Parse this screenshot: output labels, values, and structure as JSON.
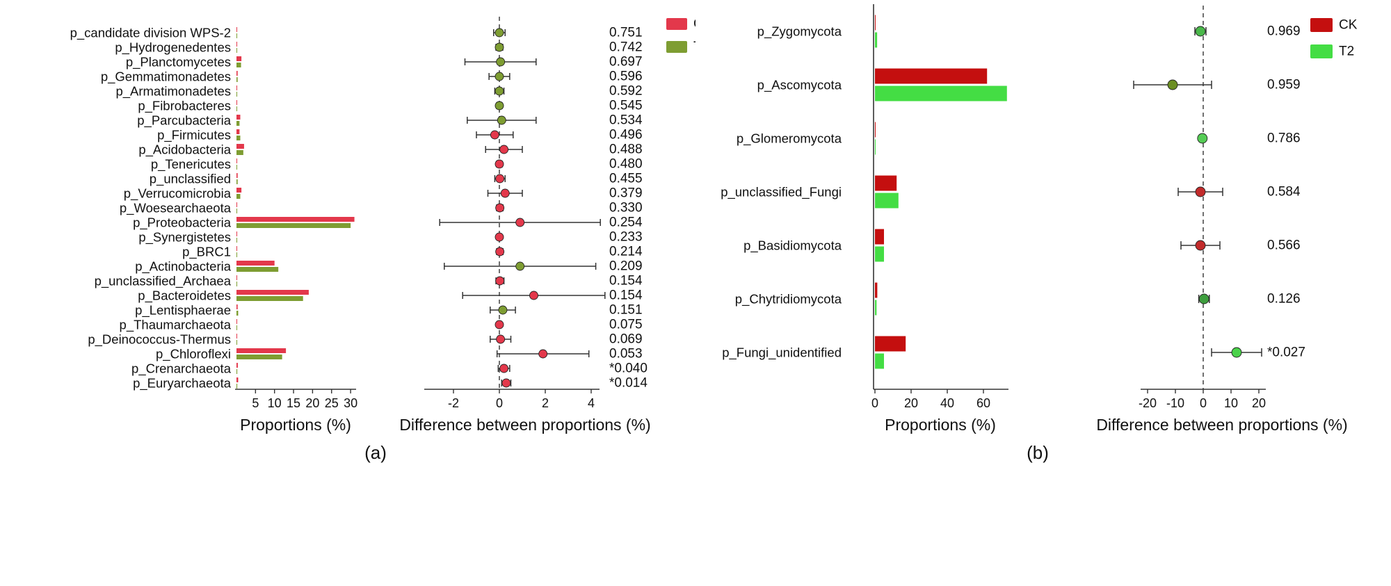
{
  "panels": [
    {
      "caption": "(a)",
      "prop_axis_label": "Proportions (%)",
      "diff_axis_label": "Difference between proportions (%)"
    },
    {
      "caption": "(b)",
      "prop_axis_label": "Proportions (%)",
      "diff_axis_label": "Difference between proportions (%)"
    }
  ],
  "chart_data": [
    {
      "type": "bar",
      "subtype": "extended-error-bar",
      "title": "",
      "caption": "(a)",
      "categories": [
        "p_candidate division WPS-2",
        "p_Hydrogenedentes",
        "p_Planctomycetes",
        "p_Gemmatimonadetes",
        "p_Armatimonadetes",
        "p_Fibrobacteres",
        "p_Parcubacteria",
        "p_Firmicutes",
        "p_Acidobacteria",
        "p_Tenericutes",
        "p_unclassified",
        "p_Verrucomicrobia",
        "p_Woesearchaeota",
        "p_Proteobacteria",
        "p_Synergistetes",
        "p_BRC1",
        "p_Actinobacteria",
        "p_unclassified_Archaea",
        "p_Bacteroidetes",
        "p_Lentisphaerae",
        "p_Thaumarchaeota",
        "p_Deinococcus-Thermus",
        "p_Chloroflexi",
        "p_Crenarchaeota",
        "p_Euryarchaeota"
      ],
      "series": [
        {
          "name": "CK",
          "color": "#e3384b",
          "values": [
            0.1,
            0.05,
            1.3,
            0.3,
            0.15,
            0.1,
            1.0,
            0.8,
            2.0,
            0.1,
            0.3,
            1.3,
            0.1,
            31,
            0.05,
            0.1,
            10,
            0.1,
            19,
            0.3,
            0.05,
            0.1,
            13,
            0.35,
            0.45
          ]
        },
        {
          "name": "T2",
          "color": "#7e9d32",
          "values": [
            0.1,
            0.05,
            1.2,
            0.3,
            0.15,
            0.1,
            0.8,
            1.0,
            1.8,
            0.1,
            0.3,
            1.0,
            0.1,
            30,
            0.05,
            0.1,
            11,
            0.1,
            17.5,
            0.45,
            0.05,
            0.1,
            12,
            0.2,
            0.2
          ]
        }
      ],
      "p_values": [
        "0.751",
        "0.742",
        "0.697",
        "0.596",
        "0.592",
        "0.545",
        "0.534",
        "0.496",
        "0.488",
        "0.480",
        "0.455",
        "0.379",
        "0.330",
        "0.254",
        "0.233",
        "0.214",
        "0.209",
        "0.154",
        "0.154",
        "0.151",
        "0.075",
        "0.069",
        "0.053",
        "*0.040",
        "*0.014"
      ],
      "differences": [
        {
          "value": 0.0,
          "lo": -0.25,
          "hi": 0.25,
          "color": "#7e9d32"
        },
        {
          "value": 0.0,
          "lo": -0.15,
          "hi": 0.15,
          "color": "#7e9d32"
        },
        {
          "value": 0.05,
          "lo": -1.5,
          "hi": 1.6,
          "color": "#7e9d32"
        },
        {
          "value": 0.0,
          "lo": -0.45,
          "hi": 0.45,
          "color": "#7e9d32"
        },
        {
          "value": 0.0,
          "lo": -0.2,
          "hi": 0.2,
          "color": "#7e9d32"
        },
        {
          "value": 0.0,
          "lo": -0.12,
          "hi": 0.12,
          "color": "#7e9d32"
        },
        {
          "value": 0.1,
          "lo": -1.4,
          "hi": 1.6,
          "color": "#7e9d32"
        },
        {
          "value": -0.2,
          "lo": -1.0,
          "hi": 0.6,
          "color": "#e3384b"
        },
        {
          "value": 0.2,
          "lo": -0.6,
          "hi": 1.0,
          "color": "#e3384b"
        },
        {
          "value": 0.0,
          "lo": -0.12,
          "hi": 0.12,
          "color": "#e3384b"
        },
        {
          "value": 0.02,
          "lo": -0.2,
          "hi": 0.25,
          "color": "#e3384b"
        },
        {
          "value": 0.25,
          "lo": -0.5,
          "hi": 1.0,
          "color": "#e3384b"
        },
        {
          "value": 0.02,
          "lo": -0.12,
          "hi": 0.16,
          "color": "#e3384b"
        },
        {
          "value": 0.9,
          "lo": -2.6,
          "hi": 4.4,
          "color": "#e3384b"
        },
        {
          "value": 0.0,
          "lo": -0.1,
          "hi": 0.1,
          "color": "#e3384b"
        },
        {
          "value": 0.02,
          "lo": -0.12,
          "hi": 0.16,
          "color": "#e3384b"
        },
        {
          "value": 0.9,
          "lo": -2.4,
          "hi": 4.2,
          "color": "#7e9d32"
        },
        {
          "value": 0.02,
          "lo": -0.15,
          "hi": 0.2,
          "color": "#e3384b"
        },
        {
          "value": 1.5,
          "lo": -1.6,
          "hi": 4.6,
          "color": "#e3384b"
        },
        {
          "value": 0.15,
          "lo": -0.4,
          "hi": 0.7,
          "color": "#7e9d32"
        },
        {
          "value": 0.0,
          "lo": -0.1,
          "hi": 0.1,
          "color": "#e3384b"
        },
        {
          "value": 0.05,
          "lo": -0.4,
          "hi": 0.5,
          "color": "#e3384b"
        },
        {
          "value": 1.9,
          "lo": -0.1,
          "hi": 3.9,
          "color": "#e3384b"
        },
        {
          "value": 0.2,
          "lo": -0.05,
          "hi": 0.45,
          "color": "#e3384b"
        },
        {
          "value": 0.3,
          "lo": 0.1,
          "hi": 0.5,
          "color": "#e3384b"
        }
      ],
      "prop_axis": {
        "label": "Proportions (%)",
        "ticks": [
          5,
          10,
          15,
          20,
          25,
          30
        ],
        "max": 32
      },
      "diff_axis": {
        "label": "Difference between proportions (%)",
        "ticks": [
          -2,
          0,
          2,
          4
        ],
        "min": -3.3,
        "max": 5
      }
    },
    {
      "type": "bar",
      "subtype": "extended-error-bar",
      "title": "",
      "caption": "(b)",
      "categories": [
        "p_Zygomycota",
        "p_Ascomycota",
        "p_Glomeromycota",
        "p_unclassified_Fungi",
        "p_Basidiomycota",
        "p_Chytridiomycota",
        "p_Fungi_unidentified"
      ],
      "series": [
        {
          "name": "CK",
          "color": "#c40f0f",
          "values": [
            0.2,
            62,
            0.15,
            12,
            5,
            1.3,
            17
          ]
        },
        {
          "name": "T2",
          "color": "#44dd44",
          "values": [
            1.2,
            73,
            0.4,
            13,
            5,
            0.9,
            5
          ]
        }
      ],
      "p_values": [
        "0.969",
        "0.959",
        "0.786",
        "0.584",
        "0.566",
        "0.126",
        "*0.027"
      ],
      "differences": [
        {
          "value": -1.0,
          "lo": -3.0,
          "hi": 1.0,
          "color": "#4ab84a"
        },
        {
          "value": -11.0,
          "lo": -25.0,
          "hi": 3.0,
          "color": "#6b8e23"
        },
        {
          "value": -0.3,
          "lo": -1.3,
          "hi": 0.7,
          "color": "#55cc55"
        },
        {
          "value": -1.0,
          "lo": -9.0,
          "hi": 7.0,
          "color": "#c22b2b"
        },
        {
          "value": -1.0,
          "lo": -8.0,
          "hi": 6.0,
          "color": "#c22b2b"
        },
        {
          "value": 0.3,
          "lo": -1.6,
          "hi": 2.2,
          "color": "#3e9e3e"
        },
        {
          "value": 12.0,
          "lo": 3.0,
          "hi": 21.0,
          "color": "#4ad24a"
        }
      ],
      "prop_axis": {
        "label": "Proportions (%)",
        "ticks": [
          0,
          20,
          40,
          60
        ],
        "max": 75
      },
      "diff_axis": {
        "label": "Difference between proportions (%)",
        "ticks": [
          -20,
          -10,
          0,
          10,
          20
        ],
        "min": -27,
        "max": 23
      }
    }
  ]
}
